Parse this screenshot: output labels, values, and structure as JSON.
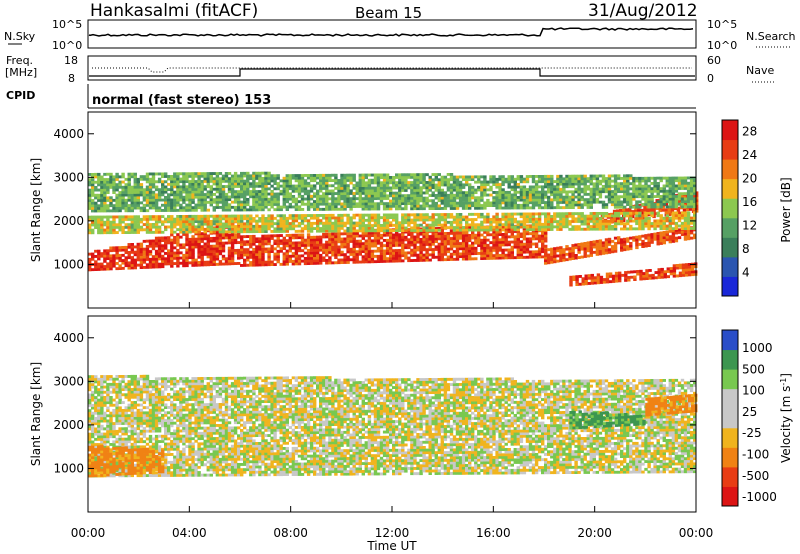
{
  "header": {
    "station": "Hankasalmi (fitACF)",
    "beam": "Beam 15",
    "date": "31/Aug/2012"
  },
  "strips": {
    "nsky_label": "N.Sky",
    "nsky_ticks": [
      "10^5",
      "10^0"
    ],
    "nsearch_label": "N.Search",
    "nsearch_ticks": [
      "10^5",
      "10^0"
    ],
    "freq_label_1": "Freq.",
    "freq_label_2": "[MHz]",
    "freq_ticks": [
      "18",
      "8"
    ],
    "nave_label": "Nave",
    "nave_ticks": [
      "60",
      "0"
    ],
    "cpid_label": "CPID",
    "cpid_text": "normal (fast stereo) 153"
  },
  "colors": {
    "power": [
      "#1a28d8",
      "#2a55b0",
      "#3a7e5a",
      "#56a064",
      "#8cc850",
      "#f0b41e",
      "#f07814",
      "#e83c14",
      "#dc1414"
    ],
    "velocity": [
      "#dc1414",
      "#e83c14",
      "#f08214",
      "#f0b41e",
      "#c8c8c8",
      "#c8c8c8",
      "#78c850",
      "#3c9650",
      "#2a4ec8"
    ]
  },
  "chart_data": [
    {
      "type": "heatmap",
      "name": "power",
      "ylabel": "Slant Range [km]",
      "yticks": [
        "4000",
        "3000",
        "2000",
        "1000"
      ],
      "ylim": [
        0,
        4500
      ],
      "xlim": [
        "00:00",
        "24:00"
      ],
      "colorbar_label": "Power [dB]",
      "colorbar_ticks": [
        "28",
        "24",
        "20",
        "16",
        "12",
        "8",
        "4"
      ],
      "color_range": [
        0,
        30
      ],
      "bands": [
        {
          "t": [
            0,
            6
          ],
          "lo": [
            850,
            1000
          ],
          "hi": [
            1250,
            2000
          ],
          "value": 26
        },
        {
          "t": [
            6,
            18
          ],
          "lo": [
            950,
            1150
          ],
          "hi": [
            1650,
            1900
          ],
          "value": 25
        },
        {
          "t": [
            18,
            24
          ],
          "lo": [
            1000,
            1600
          ],
          "hi": [
            1350,
            1850
          ],
          "value": 24
        },
        {
          "t": [
            19,
            24
          ],
          "lo": [
            500,
            750
          ],
          "hi": [
            700,
            1000
          ],
          "value": 25
        },
        {
          "t": [
            20,
            24
          ],
          "lo": [
            1900,
            2200
          ],
          "hi": [
            2100,
            2700
          ],
          "value": 25
        },
        {
          "t": [
            0,
            24
          ],
          "lo": [
            2200,
            2300
          ],
          "hi": [
            3100,
            3000
          ],
          "value": 13
        },
        {
          "t": [
            0,
            24
          ],
          "lo": [
            1700,
            1800
          ],
          "hi": [
            2100,
            2200
          ],
          "value": 17
        }
      ]
    },
    {
      "type": "heatmap",
      "name": "velocity",
      "ylabel": "Slant Range [km]",
      "yticks": [
        "4000",
        "3000",
        "2000",
        "1000"
      ],
      "ylim": [
        0,
        4500
      ],
      "xlim": [
        "00:00",
        "24:00"
      ],
      "xlabel": "Time UT",
      "xticks": [
        "00:00",
        "04:00",
        "08:00",
        "12:00",
        "16:00",
        "20:00",
        "00:00"
      ],
      "colorbar_label": "Velocity [m s^-1]",
      "colorbar_ticks": [
        "1000",
        "500",
        "100",
        "25",
        "-25",
        "-100",
        "-500",
        "-1000"
      ],
      "bands": [
        {
          "t": [
            0,
            24
          ],
          "lo": [
            800,
            900
          ],
          "hi": [
            3100,
            3000
          ],
          "value": 0
        },
        {
          "t": [
            0,
            3
          ],
          "lo": [
            800,
            900
          ],
          "hi": [
            1500,
            1400
          ],
          "value": -150
        },
        {
          "t": [
            19,
            22
          ],
          "lo": [
            1900,
            2000
          ],
          "hi": [
            2300,
            2200
          ],
          "value": 150
        },
        {
          "t": [
            22,
            24
          ],
          "lo": [
            2200,
            2300
          ],
          "hi": [
            2600,
            2700
          ],
          "value": -150
        }
      ]
    }
  ]
}
